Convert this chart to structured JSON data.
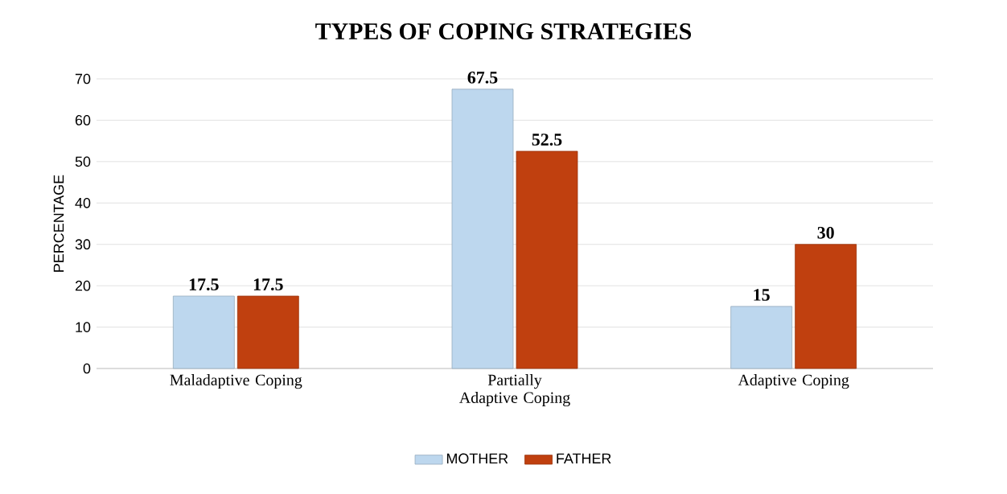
{
  "chart_data": {
    "type": "bar",
    "title": "TYPES OF COPING STRATEGIES",
    "ylabel": "PERCENTAGE",
    "categories": [
      "Maladaptive Coping",
      "Partially Adaptive Coping",
      "Adaptive Coping"
    ],
    "series": [
      {
        "name": "MOTHER",
        "color": "#bdd7ee",
        "values": [
          17.5,
          67.5,
          15
        ]
      },
      {
        "name": "FATHER",
        "color": "#c0400f",
        "values": [
          17.5,
          52.5,
          30
        ]
      }
    ],
    "ylim": [
      0,
      70
    ],
    "yticks": [
      0,
      10,
      20,
      30,
      40,
      50,
      60,
      70
    ],
    "grid": "y",
    "legend": "bottom",
    "data_labels": true
  }
}
